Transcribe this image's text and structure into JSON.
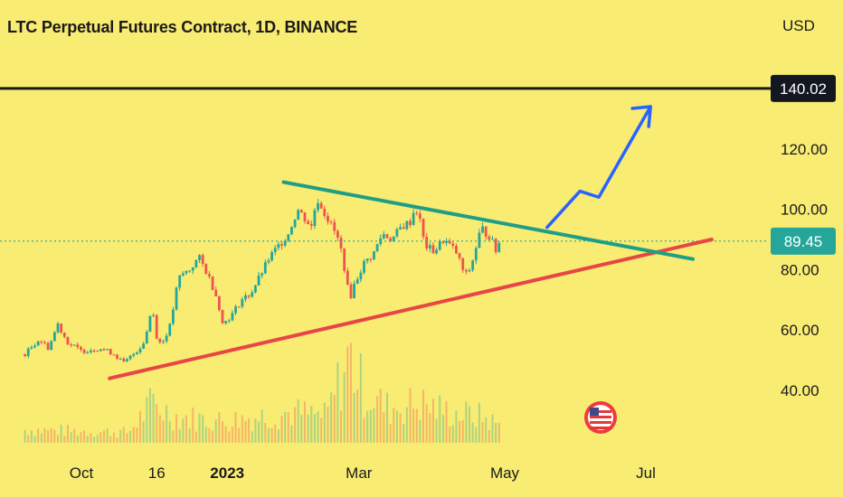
{
  "header": {
    "title": "LTC Perpetual Futures Contract, 1D, BINANCE",
    "currency": "USD"
  },
  "colors": {
    "background": "#f8ec73",
    "up": "#26a69a",
    "down": "#ef5350",
    "support": "#e84545",
    "resistance": "#1f9e86",
    "projection": "#2962ff",
    "level": "#1a1a1a"
  },
  "chart_data": {
    "type": "candlestick",
    "title": "LTC Perpetual Futures Contract, 1D, BINANCE",
    "ylabel": "USD",
    "ylim": [
      28,
      158
    ],
    "y_ticks": [
      "40.00",
      "60.00",
      "80.00",
      "100.00",
      "120.00"
    ],
    "x_ticks": [
      {
        "label": "Oct",
        "day": 0,
        "bold": false
      },
      {
        "label": "16",
        "day": 16,
        "bold": false
      },
      {
        "label": "2023",
        "day": 31,
        "bold": true
      },
      {
        "label": "Mar",
        "day": 59,
        "bold": false
      },
      {
        "label": "May",
        "day": 90,
        "bold": false
      },
      {
        "label": "Jul",
        "day": 120,
        "bold": false
      }
    ],
    "x_tick_units": "days from Oct 1 2022 (approx., index scale)",
    "price_anchors": [
      {
        "day": -12,
        "price": 52
      },
      {
        "day": -9,
        "price": 57
      },
      {
        "day": -7,
        "price": 54
      },
      {
        "day": -5,
        "price": 62
      },
      {
        "day": -3,
        "price": 56
      },
      {
        "day": 0,
        "price": 53
      },
      {
        "day": 4,
        "price": 54
      },
      {
        "day": 7,
        "price": 52
      },
      {
        "day": 9,
        "price": 49
      },
      {
        "day": 11,
        "price": 52
      },
      {
        "day": 13,
        "price": 55
      },
      {
        "day": 14,
        "price": 60
      },
      {
        "day": 15,
        "price": 68
      },
      {
        "day": 16,
        "price": 58
      },
      {
        "day": 17,
        "price": 55
      },
      {
        "day": 19,
        "price": 62
      },
      {
        "day": 20,
        "price": 72
      },
      {
        "day": 21,
        "price": 78
      },
      {
        "day": 23,
        "price": 80
      },
      {
        "day": 25,
        "price": 84
      },
      {
        "day": 27,
        "price": 78
      },
      {
        "day": 29,
        "price": 70
      },
      {
        "day": 30,
        "price": 62
      },
      {
        "day": 32,
        "price": 65
      },
      {
        "day": 34,
        "price": 70
      },
      {
        "day": 36,
        "price": 72
      },
      {
        "day": 38,
        "price": 78
      },
      {
        "day": 40,
        "price": 84
      },
      {
        "day": 42,
        "price": 88
      },
      {
        "day": 44,
        "price": 92
      },
      {
        "day": 46,
        "price": 100
      },
      {
        "day": 47,
        "price": 98
      },
      {
        "day": 49,
        "price": 94
      },
      {
        "day": 50,
        "price": 104
      },
      {
        "day": 52,
        "price": 98
      },
      {
        "day": 54,
        "price": 92
      },
      {
        "day": 55,
        "price": 88
      },
      {
        "day": 56,
        "price": 80
      },
      {
        "day": 57,
        "price": 70
      },
      {
        "day": 58,
        "price": 75
      },
      {
        "day": 60,
        "price": 82
      },
      {
        "day": 62,
        "price": 85
      },
      {
        "day": 64,
        "price": 92
      },
      {
        "day": 66,
        "price": 90
      },
      {
        "day": 68,
        "price": 94
      },
      {
        "day": 70,
        "price": 96
      },
      {
        "day": 71,
        "price": 101
      },
      {
        "day": 72,
        "price": 96
      },
      {
        "day": 73,
        "price": 88
      },
      {
        "day": 75,
        "price": 86
      },
      {
        "day": 77,
        "price": 90
      },
      {
        "day": 79,
        "price": 87
      },
      {
        "day": 80,
        "price": 85
      },
      {
        "day": 81,
        "price": 80
      },
      {
        "day": 82,
        "price": 78
      },
      {
        "day": 83,
        "price": 82
      },
      {
        "day": 84,
        "price": 88
      },
      {
        "day": 85,
        "price": 94
      },
      {
        "day": 86,
        "price": 92
      },
      {
        "day": 87,
        "price": 91
      },
      {
        "day": 88,
        "price": 86
      },
      {
        "day": 89,
        "price": 89.45
      }
    ],
    "volume_relative_note": "volume histogram, relative heights",
    "volume_anchors": [
      {
        "day": -12,
        "v": 0.15
      },
      {
        "day": 10,
        "v": 0.12
      },
      {
        "day": 15,
        "v": 0.45
      },
      {
        "day": 20,
        "v": 0.3
      },
      {
        "day": 30,
        "v": 0.25
      },
      {
        "day": 45,
        "v": 0.35
      },
      {
        "day": 52,
        "v": 0.3
      },
      {
        "day": 57,
        "v": 1.0
      },
      {
        "day": 60,
        "v": 0.6
      },
      {
        "day": 65,
        "v": 0.4
      },
      {
        "day": 72,
        "v": 0.45
      },
      {
        "day": 78,
        "v": 0.35
      },
      {
        "day": 85,
        "v": 0.3
      },
      {
        "day": 89,
        "v": 0.2
      }
    ],
    "horizontal_level": {
      "price": 140.02,
      "label": "140.02"
    },
    "last_price": {
      "price": 89.45,
      "label": "89.45"
    },
    "resistance_line": {
      "from": {
        "day": 43,
        "price": 109
      },
      "to": {
        "day": 130,
        "price": 83.5
      }
    },
    "support_line": {
      "from": {
        "day": 6,
        "price": 44
      },
      "to": {
        "day": 134,
        "price": 90
      }
    },
    "projection_path": [
      {
        "day": 99,
        "price": 94
      },
      {
        "day": 106,
        "price": 106
      },
      {
        "day": 110,
        "price": 104
      },
      {
        "day": 121,
        "price": 134
      }
    ]
  }
}
